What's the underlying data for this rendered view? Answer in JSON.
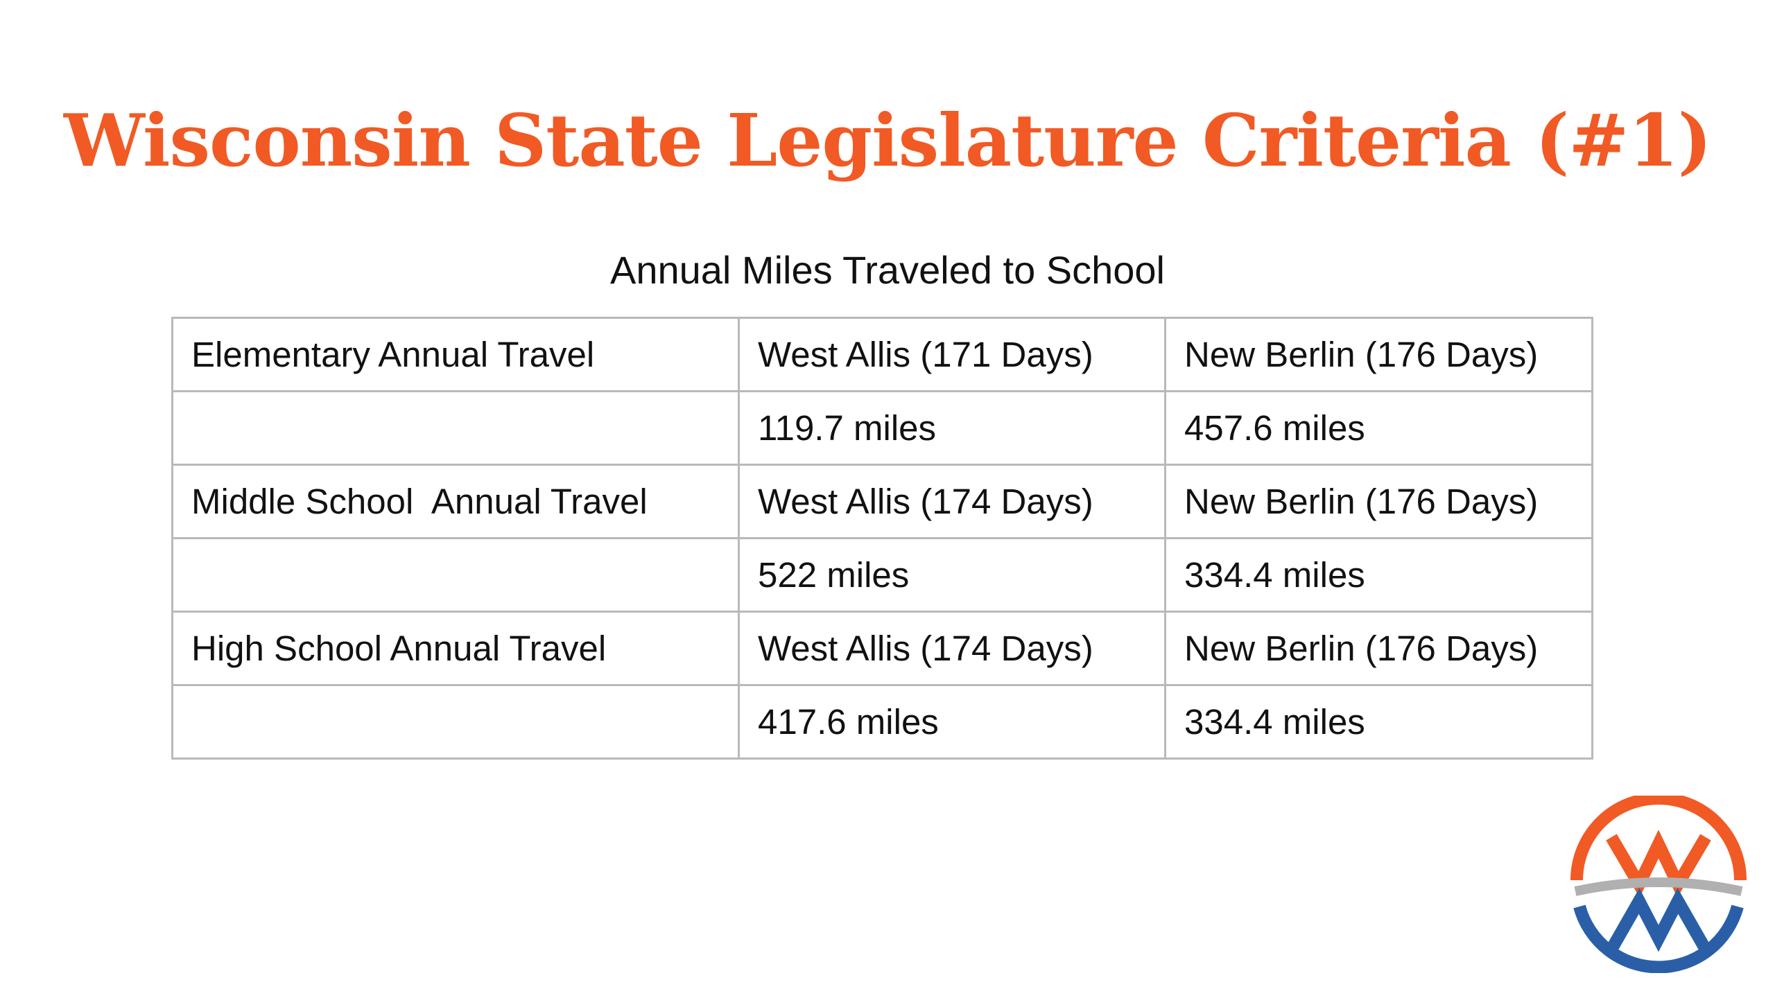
{
  "slide": {
    "title": "Wisconsin State Legislature Criteria (#1)",
    "caption": "Annual Miles Traveled to School"
  },
  "table": {
    "rows": [
      [
        "Elementary Annual Travel",
        "West Allis (171 Days)",
        "New Berlin (176 Days)"
      ],
      [
        "",
        "119.7 miles",
        "457.6 miles"
      ],
      [
        "Middle School  Annual Travel",
        "West Allis (174 Days)",
        "New Berlin (176 Days)"
      ],
      [
        "",
        "522 miles",
        "334.4 miles"
      ],
      [
        "High School Annual Travel",
        "West Allis (174 Days)",
        "New Berlin (176 Days)"
      ],
      [
        "",
        "417.6 miles",
        "334.4 miles"
      ]
    ]
  },
  "logo": {
    "icon": "wm-circle-logo-icon",
    "colors": {
      "orange": "#f15a24",
      "blue": "#2a5fa8",
      "gray": "#b0b0b0"
    }
  }
}
